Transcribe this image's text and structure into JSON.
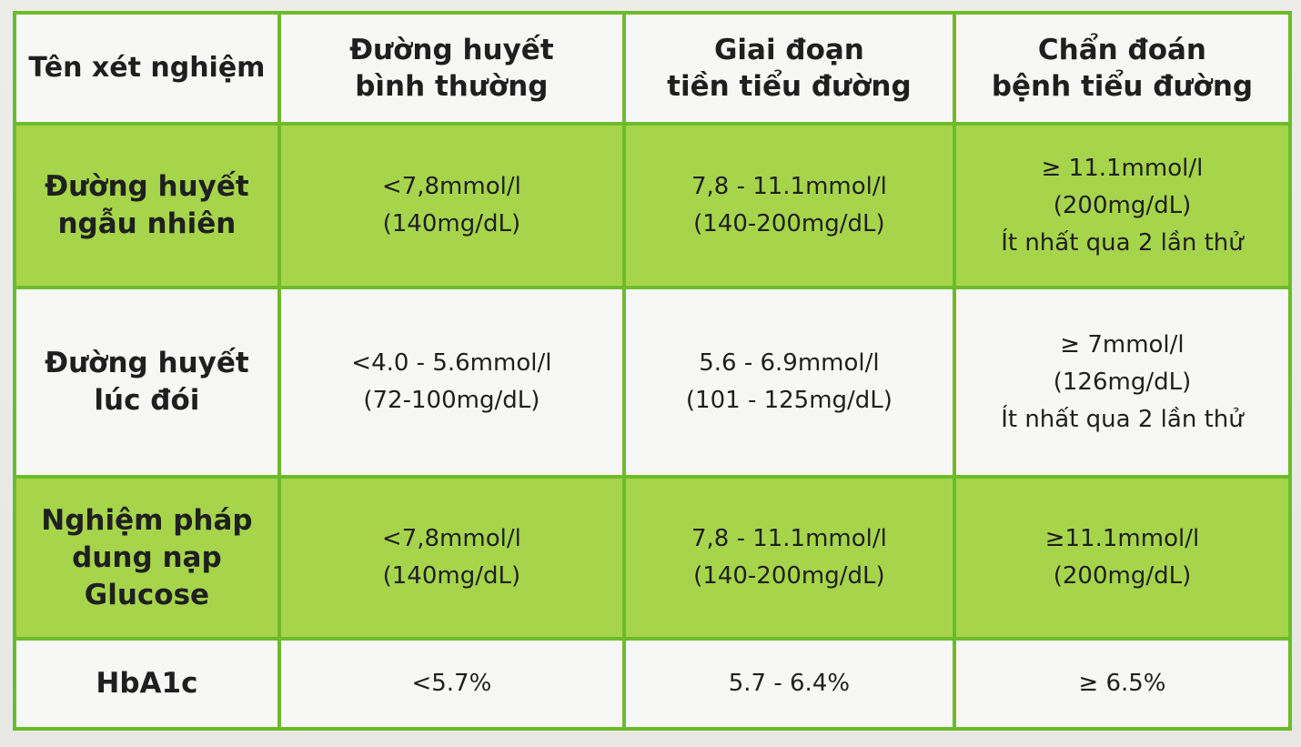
{
  "headers": [
    {
      "lines": [
        "Tên xét nghiệm"
      ]
    },
    {
      "lines": [
        "Đường huyết",
        "bình thường"
      ]
    },
    {
      "lines": [
        "Giai đoạn",
        "tiền tiểu đường"
      ]
    },
    {
      "lines": [
        "Chẩn đoán",
        "bệnh tiểu đường"
      ]
    }
  ],
  "rows": [
    {
      "label": [
        "Đường huyết",
        "ngẫu nhiên"
      ],
      "normal": [
        "<7,8mmol/l",
        "(140mg/dL)"
      ],
      "prediabetes": [
        "7,8 - 11.1mmol/l",
        "(140-200mg/dL)"
      ],
      "diabetes": [
        "≥ 11.1mmol/l",
        "(200mg/dL)",
        "Ít nhất qua 2 lần thử"
      ]
    },
    {
      "label": [
        "Đường huyết",
        "lúc đói"
      ],
      "normal": [
        "<4.0 - 5.6mmol/l",
        "(72-100mg/dL)"
      ],
      "prediabetes": [
        "5.6 - 6.9mmol/l",
        "(101 - 125mg/dL)"
      ],
      "diabetes": [
        "≥ 7mmol/l",
        "(126mg/dL)",
        "Ít nhất qua 2 lần thử"
      ]
    },
    {
      "label": [
        "Nghiệm pháp",
        "dung nạp",
        "Glucose"
      ],
      "normal": [
        "<7,8mmol/l",
        "(140mg/dL)"
      ],
      "prediabetes": [
        "7,8 - 11.1mmol/l",
        "(140-200mg/dL)"
      ],
      "diabetes": [
        "≥11.1mmol/l",
        "(200mg/dL)"
      ]
    },
    {
      "label": [
        "HbA1c"
      ],
      "normal": [
        "<5.7%"
      ],
      "prediabetes": [
        "5.7 - 6.4%"
      ],
      "diabetes": [
        "≥ 6.5%"
      ]
    }
  ],
  "colors": {
    "border_green": "#6dbb2a",
    "row_green": "#a6d54b",
    "row_white": "#f7f7f5"
  }
}
